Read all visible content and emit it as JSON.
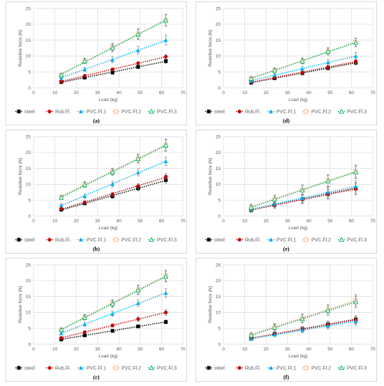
{
  "chart_data": [
    {
      "type": "scatter",
      "caption": "(a)",
      "xlabel": "Load (kg)",
      "ylabel": "Resistive force (N)",
      "xlim": [
        0,
        70
      ],
      "ylim": [
        0,
        25
      ],
      "xticks": [
        0,
        10,
        20,
        30,
        40,
        50,
        60,
        70
      ],
      "yticks": [
        0,
        5,
        10,
        15,
        20,
        25
      ],
      "grid": true,
      "legend": "bottom",
      "trendlines": true,
      "x": [
        13,
        24,
        37,
        49,
        62
      ],
      "series": [
        {
          "name": "steel",
          "values": [
            1.8,
            3.2,
            4.8,
            6.6,
            8.4
          ],
          "errors": [
            0.3,
            0.4,
            0.5,
            0.6,
            0.7
          ]
        },
        {
          "name": "Rub.Fl.",
          "values": [
            2.0,
            3.8,
            5.8,
            7.7,
            9.8
          ],
          "errors": [
            0.3,
            0.4,
            0.5,
            0.6,
            0.7
          ]
        },
        {
          "name": "PVC.Fl.1",
          "values": [
            3.2,
            5.8,
            8.8,
            11.8,
            15.0
          ],
          "errors": [
            0.4,
            0.6,
            0.9,
            1.2,
            1.6
          ]
        },
        {
          "name": "PVC.Fl.2",
          "values": [
            4.0,
            8.5,
            12.8,
            17.0,
            21.3
          ],
          "errors": [
            0.5,
            0.8,
            1.2,
            1.6,
            1.8
          ]
        },
        {
          "name": "PVC.Fl.3",
          "values": [
            4.0,
            8.4,
            12.6,
            16.8,
            21.2
          ],
          "errors": [
            0.5,
            0.8,
            1.2,
            1.6,
            1.8
          ]
        }
      ]
    },
    {
      "type": "scatter",
      "caption": "(d)",
      "xlabel": "Load (kg)",
      "ylabel": "Resistive force (N)",
      "xlim": [
        0,
        70
      ],
      "ylim": [
        0,
        25
      ],
      "xticks": [
        0,
        10,
        20,
        30,
        40,
        50,
        60,
        70
      ],
      "yticks": [
        0,
        5,
        10,
        15,
        20,
        25
      ],
      "grid": true,
      "legend": "bottom",
      "trendlines": true,
      "x": [
        13,
        24,
        37,
        49,
        62
      ],
      "series": [
        {
          "name": "steel",
          "values": [
            1.6,
            3.0,
            4.6,
            6.2,
            7.9
          ],
          "errors": [
            0.3,
            0.4,
            0.5,
            0.6,
            0.7
          ]
        },
        {
          "name": "Rub.Fl.",
          "values": [
            1.8,
            3.2,
            4.8,
            6.5,
            8.3
          ],
          "errors": [
            0.3,
            0.4,
            0.5,
            0.6,
            0.7
          ]
        },
        {
          "name": "PVC.Fl.1",
          "values": [
            2.2,
            4.0,
            6.0,
            8.0,
            10.0
          ],
          "errors": [
            0.3,
            0.5,
            0.7,
            0.9,
            1.1
          ]
        },
        {
          "name": "PVC.Fl.2",
          "values": [
            3.0,
            5.6,
            8.5,
            11.5,
            14.3
          ],
          "errors": [
            0.5,
            0.7,
            0.9,
            1.1,
            1.3
          ]
        },
        {
          "name": "PVC.Fl.3",
          "values": [
            2.9,
            5.5,
            8.4,
            11.4,
            14.2
          ],
          "errors": [
            0.5,
            0.7,
            0.9,
            1.1,
            1.3
          ]
        }
      ]
    },
    {
      "type": "scatter",
      "caption": "(b)",
      "xlabel": "Load (kg)",
      "ylabel": "Resistive force (N)",
      "xlim": [
        0,
        70
      ],
      "ylim": [
        0,
        25
      ],
      "xticks": [
        0,
        10,
        20,
        30,
        40,
        50,
        60,
        70
      ],
      "yticks": [
        0,
        5,
        10,
        15,
        20,
        25
      ],
      "grid": true,
      "legend": "bottom",
      "trendlines": true,
      "x": [
        13,
        24,
        37,
        49,
        62
      ],
      "series": [
        {
          "name": "steel",
          "values": [
            2.0,
            4.0,
            6.2,
            8.7,
            11.3
          ],
          "errors": [
            0.3,
            0.4,
            0.6,
            0.8,
            1.0
          ]
        },
        {
          "name": "Rub.Fl.",
          "values": [
            2.3,
            4.3,
            6.8,
            9.4,
            12.4
          ],
          "errors": [
            0.3,
            0.4,
            0.6,
            0.8,
            1.0
          ]
        },
        {
          "name": "PVC.Fl.1",
          "values": [
            3.4,
            6.3,
            10.0,
            13.7,
            17.2
          ],
          "errors": [
            0.4,
            0.7,
            0.9,
            1.1,
            1.3
          ]
        },
        {
          "name": "PVC.Fl.2",
          "values": [
            6.0,
            10.0,
            14.0,
            18.2,
            22.4
          ],
          "errors": [
            0.6,
            0.8,
            1.0,
            1.3,
            1.8
          ]
        },
        {
          "name": "PVC.Fl.3",
          "values": [
            5.8,
            9.8,
            13.8,
            18.0,
            22.2
          ],
          "errors": [
            0.6,
            0.8,
            1.0,
            1.3,
            1.8
          ]
        }
      ]
    },
    {
      "type": "scatter",
      "caption": "(e)",
      "xlabel": "Load (kg)",
      "ylabel": "Resistive force (N)",
      "xlim": [
        0,
        70
      ],
      "ylim": [
        0,
        25
      ],
      "xticks": [
        0,
        10,
        20,
        30,
        40,
        50,
        60,
        70
      ],
      "yticks": [
        0,
        5,
        10,
        15,
        20,
        25
      ],
      "grid": true,
      "legend": "bottom",
      "trendlines": true,
      "x": [
        13,
        24,
        37,
        49,
        62
      ],
      "series": [
        {
          "name": "steel",
          "values": [
            1.8,
            3.5,
            5.3,
            7.0,
            8.7
          ],
          "errors": [
            0.6,
            1.0,
            1.3,
            1.5,
            1.8
          ]
        },
        {
          "name": "Rub.Fl.",
          "values": [
            1.9,
            3.4,
            5.2,
            6.8,
            8.5
          ],
          "errors": [
            0.6,
            1.0,
            1.3,
            1.5,
            1.8
          ]
        },
        {
          "name": "PVC.Fl.1",
          "values": [
            2.1,
            3.8,
            5.6,
            7.5,
            9.3
          ],
          "errors": [
            0.6,
            1.0,
            1.3,
            1.5,
            1.8
          ]
        },
        {
          "name": "PVC.Fl.2",
          "values": [
            2.8,
            5.4,
            8.2,
            11.2,
            14.0
          ],
          "errors": [
            0.9,
            1.2,
            1.5,
            1.8,
            2.0
          ]
        },
        {
          "name": "PVC.Fl.3",
          "values": [
            2.7,
            5.3,
            8.1,
            11.0,
            13.8
          ],
          "errors": [
            0.9,
            1.2,
            1.5,
            1.8,
            2.0
          ]
        }
      ]
    },
    {
      "type": "scatter",
      "caption": "(c)",
      "xlabel": "Load (kg)",
      "ylabel": "Resistive force (N)",
      "xlim": [
        0,
        70
      ],
      "ylim": [
        0,
        25
      ],
      "xticks": [
        0,
        10,
        20,
        30,
        40,
        50,
        60,
        70
      ],
      "yticks": [
        0,
        5,
        10,
        15,
        20,
        25
      ],
      "grid": true,
      "legend": "bottom",
      "trendlines": true,
      "x": [
        13,
        24,
        37,
        49,
        62
      ],
      "series": [
        {
          "name": "steel",
          "values": [
            1.5,
            2.8,
            4.2,
            5.6,
            7.0
          ],
          "errors": [
            0.2,
            0.3,
            0.4,
            0.5,
            0.6
          ]
        },
        {
          "name": "Rub.Fl.",
          "values": [
            2.0,
            3.8,
            5.9,
            7.9,
            10.0
          ],
          "errors": [
            0.3,
            0.4,
            0.5,
            0.7,
            0.9
          ]
        },
        {
          "name": "PVC.Fl.1",
          "values": [
            3.4,
            6.3,
            9.6,
            12.9,
            16.1
          ],
          "errors": [
            0.4,
            0.6,
            0.8,
            1.0,
            1.3
          ]
        },
        {
          "name": "PVC.Fl.2",
          "values": [
            4.6,
            8.6,
            12.9,
            17.2,
            21.6
          ],
          "errors": [
            0.5,
            0.8,
            1.1,
            1.4,
            1.7
          ]
        },
        {
          "name": "PVC.Fl.3",
          "values": [
            4.5,
            8.4,
            12.7,
            17.0,
            21.3
          ],
          "errors": [
            0.5,
            0.8,
            1.1,
            1.4,
            1.7
          ]
        }
      ]
    },
    {
      "type": "scatter",
      "caption": "(f)",
      "xlabel": "Load (kg)",
      "ylabel": "Resistive force (N)",
      "xlim": [
        0,
        70
      ],
      "ylim": [
        0,
        25
      ],
      "xticks": [
        0,
        10,
        20,
        30,
        40,
        50,
        60,
        70
      ],
      "yticks": [
        0,
        5,
        10,
        15,
        20,
        25
      ],
      "grid": true,
      "legend": "bottom",
      "trendlines": true,
      "x": [
        13,
        24,
        37,
        49,
        62
      ],
      "series": [
        {
          "name": "steel",
          "values": [
            1.7,
            3.3,
            4.8,
            6.3,
            7.8
          ],
          "errors": [
            0.4,
            0.6,
            0.8,
            1.0,
            1.2
          ]
        },
        {
          "name": "Rub.Fl.",
          "values": [
            1.8,
            3.3,
            4.8,
            6.2,
            7.6
          ],
          "errors": [
            0.4,
            0.6,
            0.8,
            1.0,
            1.2
          ]
        },
        {
          "name": "PVC.Fl.1",
          "values": [
            1.6,
            3.0,
            4.4,
            5.8,
            7.2
          ],
          "errors": [
            0.4,
            0.6,
            0.8,
            1.0,
            1.2
          ]
        },
        {
          "name": "PVC.Fl.2",
          "values": [
            2.9,
            5.5,
            8.2,
            11.0,
            13.8
          ],
          "errors": [
            0.7,
            1.0,
            1.3,
            1.5,
            1.8
          ]
        },
        {
          "name": "PVC.Fl.3",
          "values": [
            2.8,
            5.3,
            8.0,
            10.6,
            13.3
          ],
          "errors": [
            0.7,
            1.0,
            1.3,
            1.5,
            1.8
          ]
        }
      ]
    }
  ],
  "series_colors": {
    "steel": "#000000",
    "Rub.Fl.": "#c00000",
    "PVC.Fl.1": "#00b0f0",
    "PVC.Fl.2": "#f4b183",
    "PVC.Fl.3": "#00b050"
  },
  "series_markers": {
    "steel": "square",
    "Rub.Fl.": "circle",
    "PVC.Fl.1": "triangle",
    "PVC.Fl.2": "square-open",
    "PVC.Fl.3": "triangle-open"
  },
  "grid_color": "#d9d9d9",
  "errorbar_color": "#7f7f7f"
}
